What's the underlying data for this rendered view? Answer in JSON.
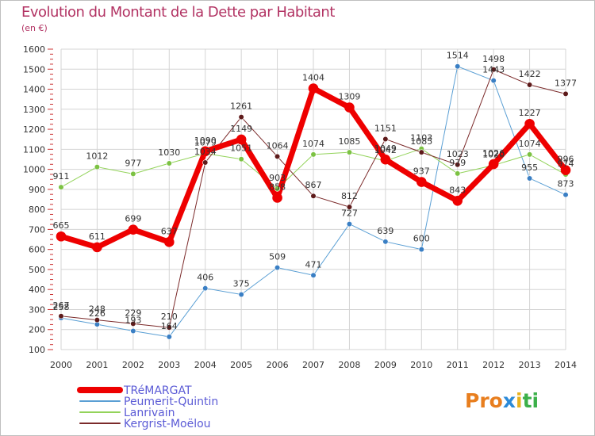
{
  "header": {
    "title": "Evolution du Montant de la Dette par Habitant",
    "unit": "(en €)"
  },
  "logo": {
    "letters": [
      "P",
      "r",
      "o",
      "x",
      "i",
      "t",
      "i"
    ]
  },
  "colors": {
    "title": "#b23363",
    "grid": "#d4d4d4",
    "axis_text": "#333333",
    "logo": [
      "#e87e1e",
      "#e87e1e",
      "#e87e1e",
      "#2c8ad8",
      "#e8b21e",
      "#3cb04a",
      "#3cb04a"
    ]
  },
  "chart_data": {
    "type": "line",
    "title": "Evolution du Montant de la Dette par Habitant",
    "ylabel": "(en €)",
    "xlabel": "",
    "ylim": [
      100,
      1600
    ],
    "yticks": [
      100,
      200,
      300,
      400,
      500,
      600,
      700,
      800,
      900,
      1000,
      1100,
      1200,
      1300,
      1400,
      1500,
      1600
    ],
    "x": [
      "2000",
      "2001",
      "2002",
      "2003",
      "2004",
      "2005",
      "2006",
      "2007",
      "2008",
      "2009",
      "2010",
      "2011",
      "2012",
      "2013",
      "2014"
    ],
    "grid": true,
    "legend_position": "bottom-left",
    "series": [
      {
        "name": "Peumerit-Quintin",
        "color": "#5a9fd4",
        "marker": "#3a7fc4",
        "width": 1,
        "values": [
          258,
          226,
          193,
          164,
          406,
          375,
          509,
          471,
          727,
          639,
          600,
          1514,
          1443,
          955,
          873
        ]
      },
      {
        "name": "Lanrivain",
        "color": "#93d35a",
        "marker": "#7cc243",
        "width": 1,
        "values": [
          911,
          1012,
          977,
          1030,
          1079,
          1051,
          903,
          1074,
          1085,
          1042,
          1103,
          979,
          1020,
          1074,
          974
        ]
      },
      {
        "name": "Kergrist-Moëlou",
        "color": "#7b2a2a",
        "marker": "#5e1a1a",
        "width": 1,
        "values": [
          267,
          248,
          229,
          210,
          1034,
          1261,
          1064,
          867,
          812,
          1151,
          1085,
          1023,
          1498,
          1422,
          1377
        ]
      },
      {
        "name": "TRéMARGAT",
        "color": "#ee0000",
        "marker": "#ee0000",
        "width": 7,
        "values": [
          665,
          611,
          699,
          637,
          1090,
          1149,
          858,
          1404,
          1309,
          1049,
          937,
          843,
          1026,
          1227,
          996
        ]
      }
    ],
    "legend_order": [
      "TRéMARGAT",
      "Peumerit-Quintin",
      "Lanrivain",
      "Kergrist-Moëlou"
    ]
  }
}
